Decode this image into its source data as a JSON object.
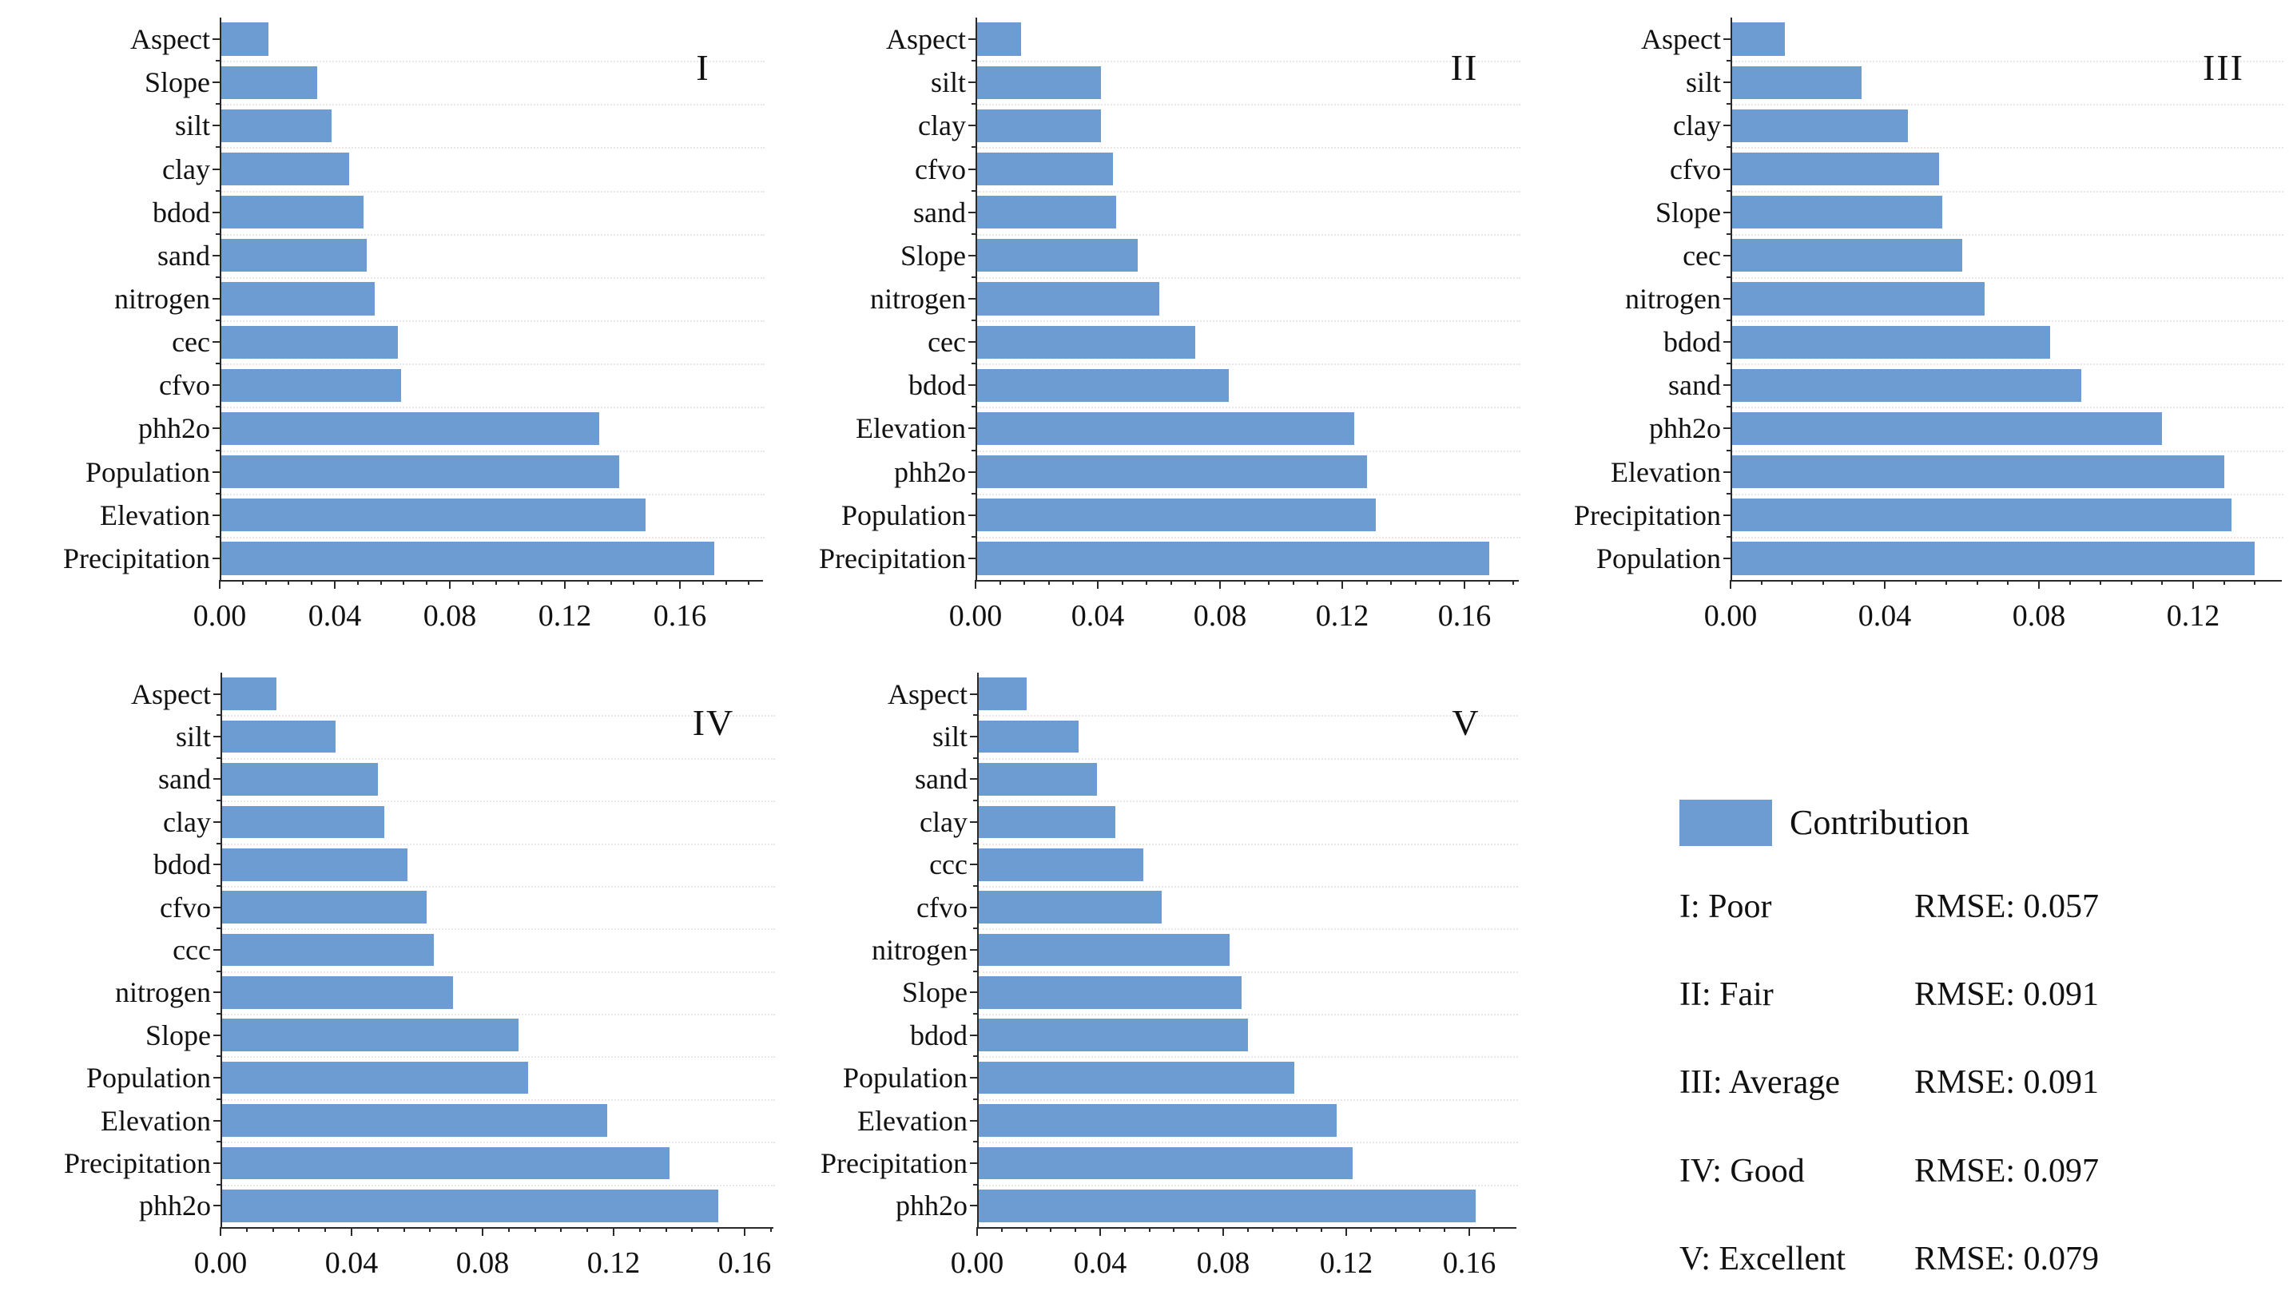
{
  "colors": {
    "bar": "#6d9cd3",
    "axis": "#2a2a2a",
    "grid": "#e7e7e7",
    "text": "#111111"
  },
  "legend": {
    "series_label": "Contribution",
    "entries": [
      {
        "class_label": "I: Poor",
        "rmse": "RMSE: 0.057"
      },
      {
        "class_label": "II: Fair",
        "rmse": "RMSE: 0.091"
      },
      {
        "class_label": "III: Average",
        "rmse": "RMSE: 0.091"
      },
      {
        "class_label": "IV: Good",
        "rmse": "RMSE: 0.097"
      },
      {
        "class_label": "V: Excellent",
        "rmse": "RMSE: 0.079"
      }
    ]
  },
  "chart_data": [
    {
      "type": "bar",
      "orientation": "horizontal",
      "panel_label": "I",
      "categories": [
        "Aspect",
        "Slope",
        "silt",
        "clay",
        "bdod",
        "sand",
        "nitrogen",
        "cec",
        "cfvo",
        "phh2o",
        "Population",
        "Elevation",
        "Precipitation"
      ],
      "values": [
        0.017,
        0.034,
        0.039,
        0.045,
        0.05,
        0.051,
        0.054,
        0.062,
        0.063,
        0.132,
        0.139,
        0.148,
        0.172
      ],
      "x_ticks": [
        0,
        0.04,
        0.08,
        0.12,
        0.16
      ],
      "x_tick_labels": [
        "0.00",
        "0.04",
        "0.08",
        "0.12",
        "0.16"
      ],
      "xlim": [
        0,
        0.189
      ],
      "xlabel": "",
      "ylabel": "",
      "grid": "dotted-horizontal"
    },
    {
      "type": "bar",
      "orientation": "horizontal",
      "panel_label": "II",
      "categories": [
        "Aspect",
        "silt",
        "clay",
        "cfvo",
        "sand",
        "Slope",
        "nitrogen",
        "cec",
        "bdod",
        "Elevation",
        "phh2o",
        "Population",
        "Precipitation"
      ],
      "values": [
        0.015,
        0.041,
        0.041,
        0.045,
        0.046,
        0.053,
        0.06,
        0.072,
        0.083,
        0.124,
        0.128,
        0.131,
        0.168
      ],
      "x_ticks": [
        0,
        0.04,
        0.08,
        0.12,
        0.16
      ],
      "x_tick_labels": [
        "0.00",
        "0.04",
        "0.08",
        "0.12",
        "0.16"
      ],
      "xlim": [
        0,
        0.178
      ],
      "xlabel": "",
      "ylabel": "",
      "grid": "dotted-horizontal"
    },
    {
      "type": "bar",
      "orientation": "horizontal",
      "panel_label": "III",
      "categories": [
        "Aspect",
        "silt",
        "clay",
        "cfvo",
        "Slope",
        "cec",
        "nitrogen",
        "bdod",
        "sand",
        "phh2o",
        "Elevation",
        "Precipitation",
        "Population"
      ],
      "values": [
        0.014,
        0.034,
        0.046,
        0.054,
        0.055,
        0.06,
        0.066,
        0.083,
        0.091,
        0.112,
        0.128,
        0.13,
        0.136
      ],
      "x_ticks": [
        0,
        0.04,
        0.08,
        0.12
      ],
      "x_tick_labels": [
        "0.00",
        "0.04",
        "0.08",
        "0.12"
      ],
      "xlim": [
        0,
        0.143
      ],
      "xlabel": "",
      "ylabel": "",
      "grid": "dotted-horizontal"
    },
    {
      "type": "bar",
      "orientation": "horizontal",
      "panel_label": "IV",
      "categories": [
        "Aspect",
        "silt",
        "sand",
        "clay",
        "bdod",
        "cfvo",
        "ccc",
        "nitrogen",
        "Slope",
        "Population",
        "Elevation",
        "Precipitation",
        "phh2o"
      ],
      "values": [
        0.017,
        0.035,
        0.048,
        0.05,
        0.057,
        0.063,
        0.065,
        0.071,
        0.091,
        0.094,
        0.118,
        0.137,
        0.152
      ],
      "x_ticks": [
        0,
        0.04,
        0.08,
        0.12,
        0.16
      ],
      "x_tick_labels": [
        "0.00",
        "0.04",
        "0.08",
        "0.12",
        "0.16"
      ],
      "xlim": [
        0,
        0.169
      ],
      "xlabel": "",
      "ylabel": "",
      "grid": "dotted-horizontal"
    },
    {
      "type": "bar",
      "orientation": "horizontal",
      "panel_label": "V",
      "categories": [
        "Aspect",
        "silt",
        "sand",
        "clay",
        "ccc",
        "cfvo",
        "nitrogen",
        "Slope",
        "bdod",
        "Population",
        "Elevation",
        "Precipitation",
        "phh2o"
      ],
      "values": [
        0.016,
        0.033,
        0.039,
        0.045,
        0.054,
        0.06,
        0.082,
        0.086,
        0.088,
        0.103,
        0.117,
        0.122,
        0.162
      ],
      "x_ticks": [
        0,
        0.04,
        0.08,
        0.12,
        0.16
      ],
      "x_tick_labels": [
        "0.00",
        "0.04",
        "0.08",
        "0.12",
        "0.16"
      ],
      "xlim": [
        0,
        0.175
      ],
      "xlabel": "",
      "ylabel": "",
      "grid": "dotted-horizontal"
    }
  ]
}
